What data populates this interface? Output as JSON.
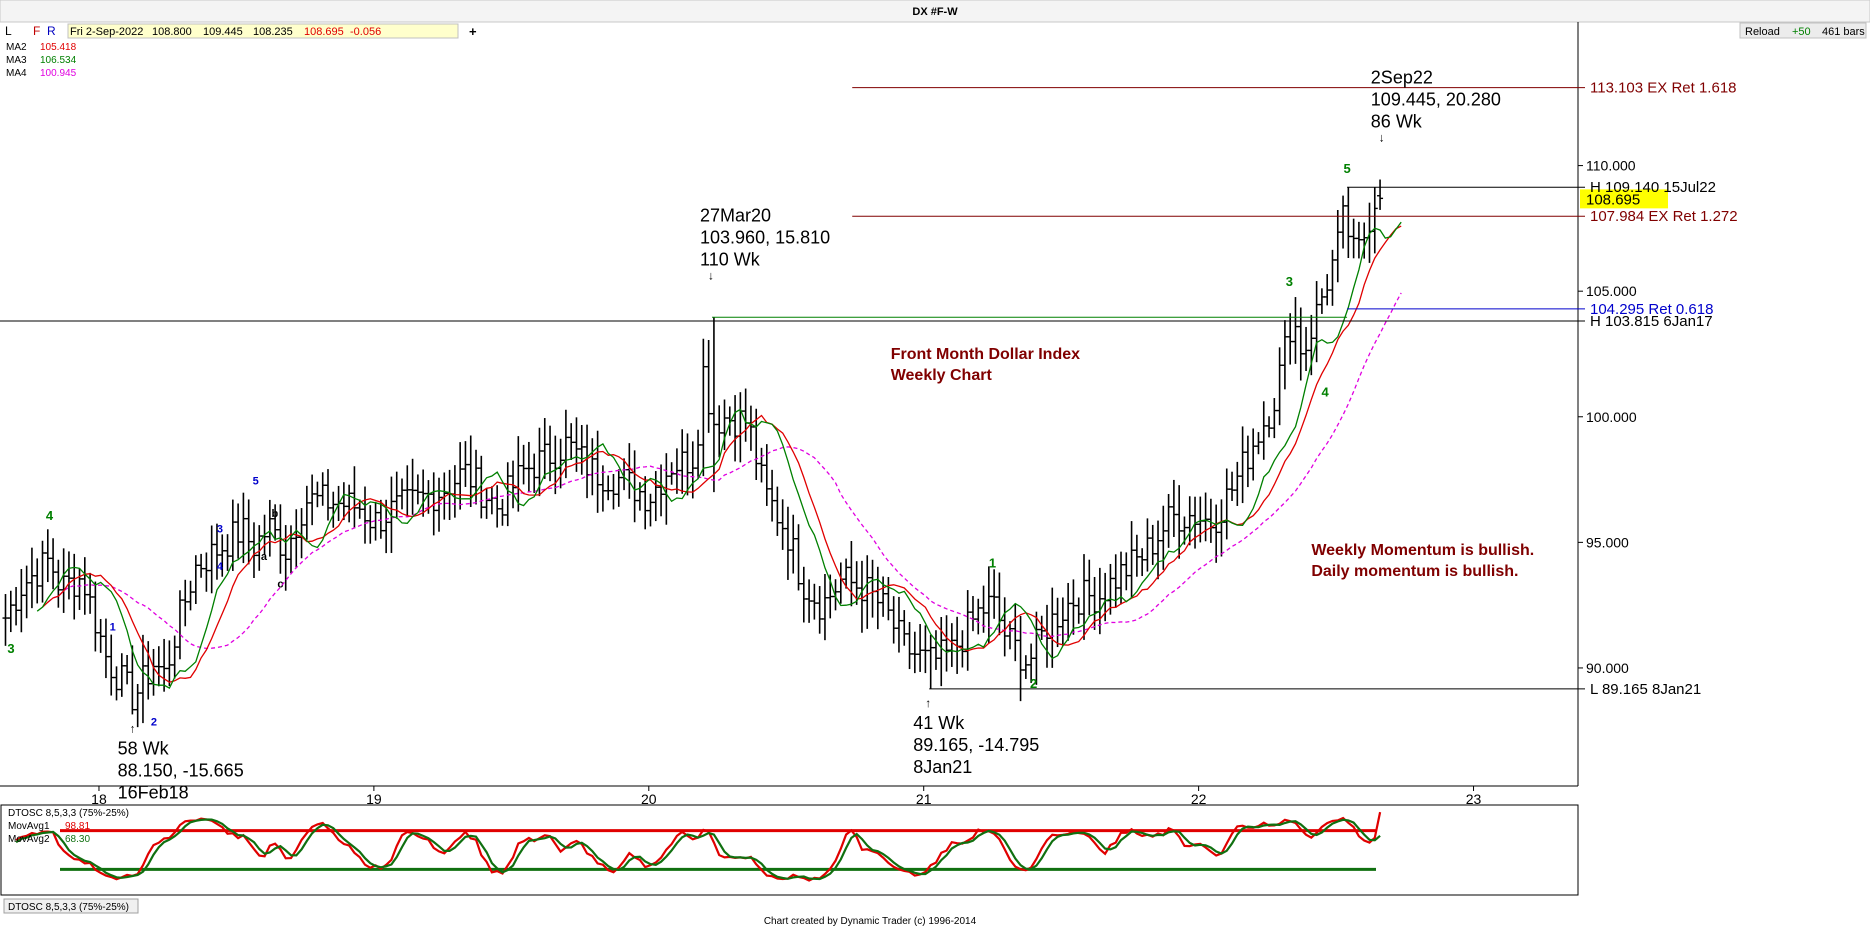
{
  "toolbar": {
    "buttons": [
      "L",
      "F",
      "R"
    ],
    "info": [
      "Fri 2-Sep-2022",
      "108.800",
      "109.445",
      "108.235",
      "108.695",
      "-0.056"
    ],
    "plus": "+",
    "reload": "Reload",
    "bars_delta": "+50",
    "bars_count": "461 bars"
  },
  "window_title": "DX #F-W",
  "footer": "Chart created by Dynamic Trader  (c) 1996-2014",
  "bottom_tab": "DTOSC 8,5,3,3 (75%-25%)",
  "colors": {
    "bars": "#000000",
    "ma2": "#e00000",
    "ma3": "#008000",
    "ma4": "#e000e0",
    "osc_fast": "#e00000",
    "osc_slow": "#107010",
    "last_price_bg": "#ffff00",
    "maroon": "#800000",
    "fib_blue": "#0000cc"
  },
  "chart_data": [
    {
      "type": "ohlc",
      "title": "DX #F-W",
      "legend": [
        {
          "label": "MA2",
          "value": "105.418",
          "color": "#e00000"
        },
        {
          "label": "MA3",
          "value": "106.534",
          "color": "#008000"
        },
        {
          "label": "MA4",
          "value": "100.945",
          "color": "#e000e0"
        }
      ],
      "y_ticks": [
        "110.000",
        "105.000",
        "100.000",
        "95.000",
        "90.000"
      ],
      "y_tick_values": [
        110,
        105,
        100,
        95,
        90
      ],
      "ylim": [
        85.3,
        115.0
      ],
      "x_ticks": [
        "18",
        "19",
        "20",
        "21",
        "22",
        "23"
      ],
      "x_tick_values": [
        2018,
        2019,
        2020,
        2021,
        2022,
        2023
      ],
      "xlim": [
        2017.64,
        2023.38
      ],
      "last_price": "108.695",
      "last_price_value": 108.695,
      "anchors": [
        {
          "t": 2017.66,
          "v": 92.0
        },
        {
          "t": 2017.72,
          "v": 93.3
        },
        {
          "t": 2017.82,
          "v": 94.3
        },
        {
          "t": 2017.86,
          "v": 93.2
        },
        {
          "t": 2017.94,
          "v": 93.6
        },
        {
          "t": 2018.03,
          "v": 90.3
        },
        {
          "t": 2018.126,
          "v": 88.8
        },
        {
          "t": 2018.2,
          "v": 90.2
        },
        {
          "t": 2018.24,
          "v": 89.7
        },
        {
          "t": 2018.28,
          "v": 91.5
        },
        {
          "t": 2018.35,
          "v": 94.0
        },
        {
          "t": 2018.44,
          "v": 94.8
        },
        {
          "t": 2018.52,
          "v": 95.5
        },
        {
          "t": 2018.56,
          "v": 94.8
        },
        {
          "t": 2018.62,
          "v": 95.6
        },
        {
          "t": 2018.68,
          "v": 94.7
        },
        {
          "t": 2018.75,
          "v": 96.7
        },
        {
          "t": 2018.85,
          "v": 96.6
        },
        {
          "t": 2018.95,
          "v": 96.4
        },
        {
          "t": 2019.0,
          "v": 95.8
        },
        {
          "t": 2019.07,
          "v": 96.3
        },
        {
          "t": 2019.15,
          "v": 96.6
        },
        {
          "t": 2019.25,
          "v": 97.1
        },
        {
          "t": 2019.33,
          "v": 97.8
        },
        {
          "t": 2019.45,
          "v": 96.4
        },
        {
          "t": 2019.55,
          "v": 97.9
        },
        {
          "t": 2019.63,
          "v": 98.4
        },
        {
          "t": 2019.7,
          "v": 98.9
        },
        {
          "t": 2019.8,
          "v": 97.8
        },
        {
          "t": 2019.9,
          "v": 97.5
        },
        {
          "t": 2020.0,
          "v": 96.8
        },
        {
          "t": 2020.08,
          "v": 98.1
        },
        {
          "t": 2020.13,
          "v": 98.2
        },
        {
          "t": 2020.17,
          "v": 98.5
        },
        {
          "t": 2020.2,
          "v": 102.0
        },
        {
          "t": 2020.23,
          "v": 99.8
        },
        {
          "t": 2020.28,
          "v": 100.0
        },
        {
          "t": 2020.36,
          "v": 99.8
        },
        {
          "t": 2020.42,
          "v": 97.0
        },
        {
          "t": 2020.5,
          "v": 95.5
        },
        {
          "t": 2020.56,
          "v": 93.4
        },
        {
          "t": 2020.63,
          "v": 92.5
        },
        {
          "t": 2020.7,
          "v": 93.5
        },
        {
          "t": 2020.78,
          "v": 93.2
        },
        {
          "t": 2020.86,
          "v": 92.3
        },
        {
          "t": 2020.93,
          "v": 90.8
        },
        {
          "t": 2021.02,
          "v": 90.2
        },
        {
          "t": 2021.1,
          "v": 90.6
        },
        {
          "t": 2021.2,
          "v": 92.2
        },
        {
          "t": 2021.25,
          "v": 92.6
        },
        {
          "t": 2021.3,
          "v": 91.2
        },
        {
          "t": 2021.38,
          "v": 90.2
        },
        {
          "t": 2021.45,
          "v": 91.7
        },
        {
          "t": 2021.55,
          "v": 92.8
        },
        {
          "t": 2021.64,
          "v": 92.9
        },
        {
          "t": 2021.72,
          "v": 93.8
        },
        {
          "t": 2021.8,
          "v": 94.5
        },
        {
          "t": 2021.9,
          "v": 96.0
        },
        {
          "t": 2021.98,
          "v": 96.1
        },
        {
          "t": 2022.05,
          "v": 95.8
        },
        {
          "t": 2022.13,
          "v": 97.3
        },
        {
          "t": 2022.2,
          "v": 99.0
        },
        {
          "t": 2022.27,
          "v": 100.5
        },
        {
          "t": 2022.34,
          "v": 104.0
        },
        {
          "t": 2022.38,
          "v": 102.5
        },
        {
          "t": 2022.44,
          "v": 104.5
        },
        {
          "t": 2022.5,
          "v": 106.5
        },
        {
          "t": 2022.53,
          "v": 108.0
        },
        {
          "t": 2022.57,
          "v": 106.2
        },
        {
          "t": 2022.61,
          "v": 107.5
        },
        {
          "t": 2022.64,
          "v": 108.7
        },
        {
          "t": 2022.67,
          "v": 108.7
        }
      ],
      "ohlc_samples": [
        {
          "date": "16Feb18",
          "low": 88.15
        },
        {
          "date": "27Mar20",
          "high": 103.96
        },
        {
          "date": "8Jan21",
          "low": 89.165
        },
        {
          "date": "15Jul22",
          "high": 109.14
        },
        {
          "date": "2Sep22",
          "open": 108.8,
          "high": 109.445,
          "low": 108.235,
          "close": 108.695
        }
      ],
      "horizontal_lines": [
        {
          "value": 113.103,
          "label": "113.103 EX Ret 1.618",
          "color": "#800000",
          "from_t": 2020.74
        },
        {
          "value": 109.14,
          "label": "H 109.140 15Jul22",
          "color": "#000000",
          "from_t": 2022.54
        },
        {
          "value": 107.984,
          "label": "107.984 EX Ret 1.272",
          "color": "#800000",
          "from_t": 2020.74
        },
        {
          "value": 104.295,
          "label": "104.295 Ret 0.618",
          "color": "#0000cc",
          "from_t": 2022.54
        },
        {
          "value": 103.815,
          "label": "H 103.815 6Jan17",
          "color": "#000000",
          "from_t": 2017.64
        },
        {
          "value": 89.165,
          "label": "L 89.165 8Jan21",
          "color": "#000000",
          "from_t": 2021.02
        }
      ],
      "callouts": [
        {
          "t": 2018.126,
          "v": 88.15,
          "side": "below",
          "lines": [
            "58 Wk",
            "88.150, -15.665",
            "16Feb18"
          ]
        },
        {
          "t": 2020.23,
          "v": 103.96,
          "side": "above",
          "lines": [
            "27Mar20",
            "103.960, 15.810",
            "110 Wk"
          ]
        },
        {
          "t": 2021.02,
          "v": 89.165,
          "side": "below",
          "lines": [
            "41 Wk",
            "89.165, -14.795",
            "8Jan21"
          ]
        },
        {
          "t": 2022.67,
          "v": 109.445,
          "side": "above",
          "lines": [
            "2Sep22",
            "109.445, 20.280",
            "86 Wk"
          ]
        }
      ],
      "wave_labels": [
        {
          "text": "3",
          "t": 2017.68,
          "v": 90.6,
          "color": "#008000",
          "size": 13
        },
        {
          "text": "4",
          "t": 2017.82,
          "v": 95.9,
          "color": "#008000",
          "size": 13
        },
        {
          "text": "1",
          "t": 2018.05,
          "v": 91.5,
          "color": "#0000cc",
          "size": 11
        },
        {
          "text": "2",
          "t": 2018.2,
          "v": 87.7,
          "color": "#0000cc",
          "size": 11
        },
        {
          "text": "3",
          "t": 2018.44,
          "v": 95.4,
          "color": "#0000cc",
          "size": 11
        },
        {
          "text": "4",
          "t": 2018.44,
          "v": 93.9,
          "color": "#0000cc",
          "size": 11
        },
        {
          "text": "5",
          "t": 2018.57,
          "v": 97.3,
          "color": "#0000cc",
          "size": 11
        },
        {
          "text": "a",
          "t": 2018.6,
          "v": 94.3,
          "color": "#000000",
          "size": 11
        },
        {
          "text": "b",
          "t": 2018.64,
          "v": 96.0,
          "color": "#000000",
          "size": 11
        },
        {
          "text": "c",
          "t": 2018.66,
          "v": 93.2,
          "color": "#000000",
          "size": 11
        },
        {
          "text": "1",
          "t": 2021.25,
          "v": 94.0,
          "color": "#008000",
          "size": 13
        },
        {
          "text": "2",
          "t": 2021.4,
          "v": 89.2,
          "color": "#008000",
          "size": 13
        },
        {
          "text": "3",
          "t": 2022.33,
          "v": 105.2,
          "color": "#008000",
          "size": 13
        },
        {
          "text": "4",
          "t": 2022.46,
          "v": 100.8,
          "color": "#008000",
          "size": 13
        },
        {
          "text": "5",
          "t": 2022.54,
          "v": 109.7,
          "color": "#008000",
          "size": 13
        }
      ],
      "annotations": [
        {
          "lines": [
            "Front Month Dollar Index",
            "Weekly Chart"
          ],
          "t": 2020.88,
          "v": 102.3,
          "color": "#800000"
        },
        {
          "lines": [
            "Weekly Momentum is bullish.",
            "Daily momentum is bullish."
          ],
          "t": 2022.41,
          "v": 94.5,
          "color": "#800000"
        }
      ]
    },
    {
      "type": "line",
      "title": "DTOSC 8,5,3,3 (75%-25%)",
      "legend": [
        {
          "label": "DTOSC 8,5,3,3 (75%-25%)",
          "value": "",
          "color": "#000000"
        },
        {
          "label": "MovAvg1",
          "value": "98.81",
          "color": "#e00000"
        },
        {
          "label": "MovAvg2",
          "value": "68.30",
          "color": "#107010"
        }
      ],
      "levels": [
        75,
        25
      ],
      "ylim": [
        -8,
        108
      ],
      "series": [
        {
          "name": "MovAvg1",
          "last": 98.81
        },
        {
          "name": "MovAvg2",
          "last": 68.3
        }
      ]
    }
  ]
}
